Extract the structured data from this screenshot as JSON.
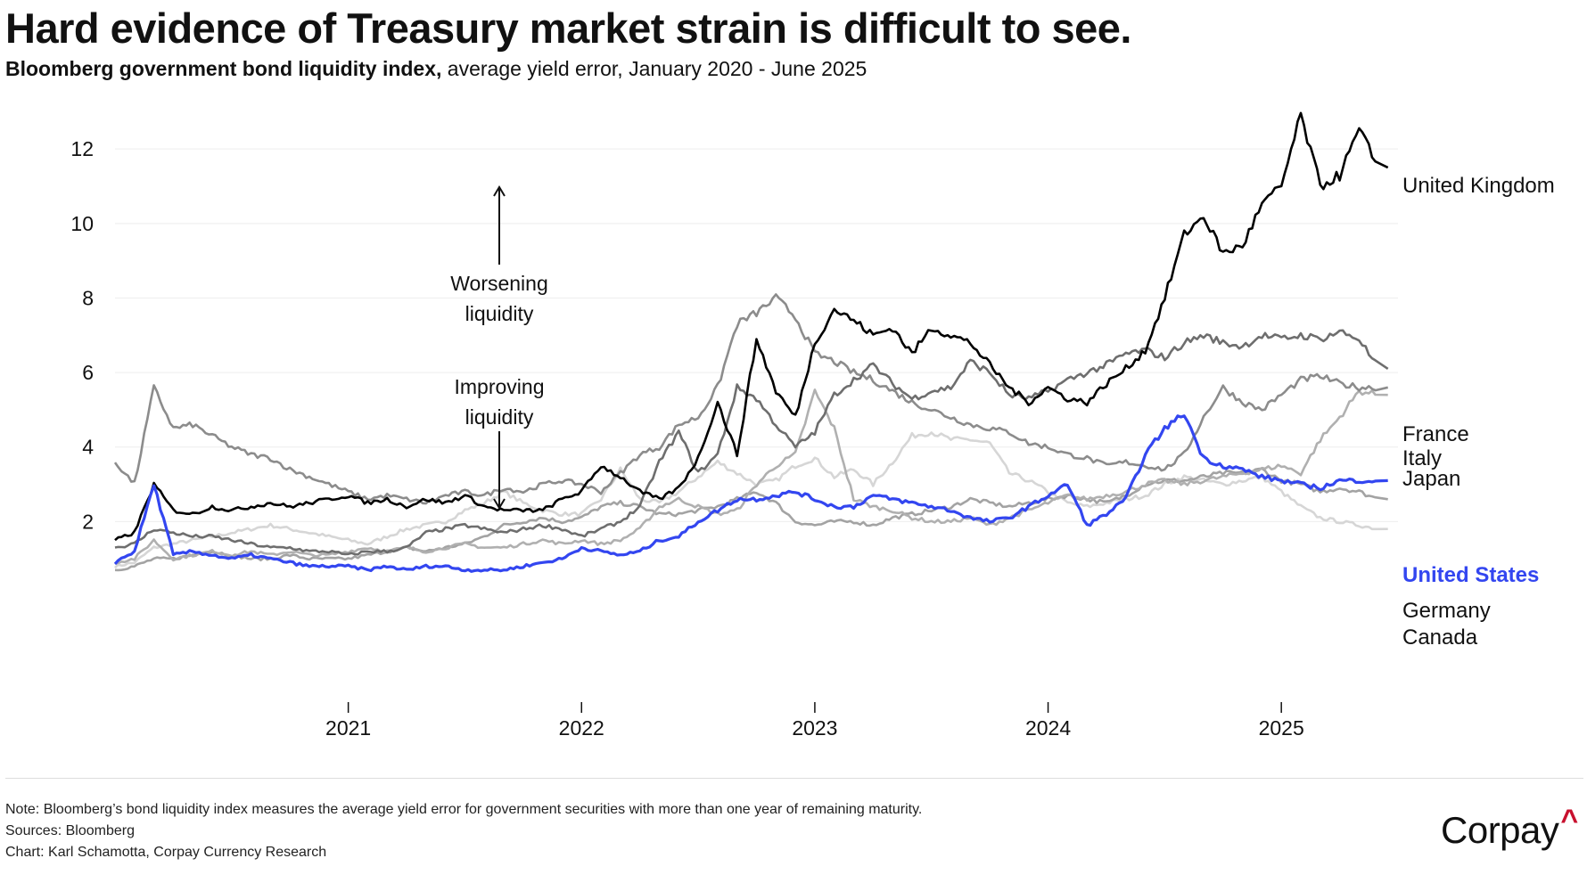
{
  "header": {
    "title": "Hard evidence of Treasury market strain is difficult to see.",
    "subtitle_bold": "Bloomberg government bond liquidity index,",
    "subtitle_rest": " average yield error, January 2020 - June 2025"
  },
  "annotations": {
    "up_line1": "Worsening",
    "up_line2": "liquidity",
    "down_line1": "Improving",
    "down_line2": "liquidity"
  },
  "footer": {
    "note": "Note: Bloomberg’s bond liquidity index measures the average yield error for government securities with more than one year of remaining maturity.",
    "sources": "Sources: Bloomberg",
    "credit": "Chart: Karl Schamotta, Corpay Currency Research"
  },
  "logo": {
    "text": "Corpay",
    "mark": "^",
    "mark_color": "#c8102e"
  },
  "chart_data": {
    "type": "line",
    "title": "Hard evidence of Treasury market strain is difficult to see.",
    "subtitle": "Bloomberg government bond liquidity index, average yield error, January 2020 - June 2025",
    "xlabel": "",
    "ylabel": "",
    "x_start": "2020-01",
    "x_end": "2025-06",
    "frequency": "monthly (approximate)",
    "xlim": [
      2020.0,
      2025.5
    ],
    "ylim": [
      0,
      13.2
    ],
    "yticks": [
      2,
      4,
      6,
      8,
      10,
      12
    ],
    "xticks": [
      {
        "value": 2021,
        "label": "2021"
      },
      {
        "value": 2022,
        "label": "2022"
      },
      {
        "value": 2023,
        "label": "2023"
      },
      {
        "value": 2024,
        "label": "2024"
      },
      {
        "value": 2025,
        "label": "2025"
      }
    ],
    "grid": "horizontal",
    "legend": "direct labels at line ends (right)",
    "series": [
      {
        "name": "Canada",
        "color": "#d6d6d6",
        "label_color": "#111111",
        "bold": false,
        "values": [
          0.8,
          0.9,
          1.3,
          1.4,
          1.5,
          1.6,
          1.7,
          1.8,
          1.9,
          1.8,
          1.7,
          1.6,
          1.5,
          1.4,
          1.6,
          1.8,
          1.9,
          2.0,
          2.3,
          2.5,
          2.8,
          2.5,
          2.3,
          2.2,
          2.2,
          2.6,
          3.4,
          2.6,
          2.5,
          2.8,
          3.2,
          3.6,
          3.3,
          3.0,
          3.1,
          3.5,
          3.7,
          3.2,
          3.4,
          3.0,
          3.6,
          4.3,
          4.4,
          4.2,
          4.2,
          4.1,
          3.3,
          3.1,
          2.8,
          2.5,
          2.4,
          2.5,
          2.6,
          2.7,
          3.0,
          3.2,
          3.1,
          3.0,
          3.1,
          3.2,
          2.8,
          2.4,
          2.1,
          2.0,
          1.9,
          1.8
        ]
      },
      {
        "name": "Germany",
        "color": "#a3a3a3",
        "label_color": "#111111",
        "bold": false,
        "values": [
          0.7,
          0.8,
          1.0,
          1.0,
          1.1,
          1.2,
          1.1,
          1.0,
          1.0,
          1.1,
          1.0,
          1.0,
          1.0,
          1.1,
          1.2,
          1.3,
          1.2,
          1.3,
          1.4,
          1.6,
          1.9,
          2.0,
          2.1,
          2.0,
          2.1,
          2.4,
          2.5,
          2.4,
          2.2,
          2.2,
          2.3,
          2.4,
          2.6,
          2.8,
          2.5,
          2.0,
          1.9,
          2.0,
          2.0,
          1.9,
          2.1,
          2.2,
          2.3,
          2.4,
          2.6,
          2.5,
          2.4,
          2.5,
          2.6,
          2.7,
          2.6,
          2.5,
          2.7,
          3.0,
          3.1,
          3.1,
          3.2,
          3.3,
          3.3,
          3.4,
          3.1,
          3.0,
          2.8,
          2.9,
          2.8,
          2.6
        ]
      },
      {
        "name": "Japan",
        "color": "#b0b0b0",
        "label_color": "#111111",
        "bold": false,
        "values": [
          0.9,
          1.0,
          1.5,
          1.0,
          1.1,
          1.2,
          1.1,
          1.2,
          1.1,
          1.2,
          1.1,
          1.1,
          1.2,
          1.3,
          1.2,
          1.3,
          1.2,
          1.3,
          1.4,
          1.3,
          1.3,
          1.4,
          1.5,
          1.4,
          1.5,
          1.4,
          1.5,
          1.8,
          2.4,
          2.6,
          2.4,
          2.2,
          2.3,
          3.0,
          3.5,
          3.8,
          5.5,
          4.5,
          2.6,
          2.4,
          2.3,
          2.1,
          2.0,
          2.0,
          2.1,
          1.9,
          2.1,
          2.3,
          2.5,
          2.7,
          2.6,
          2.7,
          2.8,
          3.0,
          3.1,
          3.0,
          3.1,
          3.2,
          3.3,
          3.4,
          3.5,
          3.3,
          4.2,
          4.8,
          5.5,
          5.4
        ]
      },
      {
        "name": "Italy",
        "color": "#8c8c8c",
        "label_color": "#111111",
        "bold": false,
        "values": [
          3.6,
          3.0,
          5.6,
          4.5,
          4.6,
          4.3,
          4.0,
          3.8,
          3.7,
          3.4,
          3.2,
          3.0,
          2.8,
          2.6,
          2.7,
          2.6,
          2.5,
          2.7,
          2.8,
          2.7,
          2.9,
          2.8,
          3.0,
          3.1,
          3.0,
          2.8,
          3.3,
          3.8,
          4.0,
          4.6,
          4.8,
          5.6,
          7.3,
          7.6,
          8.0,
          7.5,
          6.5,
          6.3,
          6.0,
          5.8,
          5.5,
          5.2,
          5.0,
          4.8,
          4.6,
          4.5,
          4.4,
          4.1,
          4.0,
          3.8,
          3.7,
          3.5,
          3.6,
          3.5,
          3.4,
          3.8,
          4.8,
          5.6,
          5.2,
          5.0,
          5.4,
          5.8,
          5.9,
          5.7,
          5.6,
          5.6
        ]
      },
      {
        "name": "France",
        "color": "#6e6e6e",
        "label_color": "#111111",
        "bold": false,
        "values": [
          1.3,
          1.4,
          1.8,
          1.7,
          1.6,
          1.6,
          1.5,
          1.4,
          1.3,
          1.3,
          1.2,
          1.2,
          1.1,
          1.2,
          1.2,
          1.3,
          1.7,
          1.8,
          1.9,
          1.8,
          1.7,
          1.8,
          1.9,
          1.8,
          1.6,
          1.8,
          2.0,
          2.4,
          3.6,
          4.4,
          3.3,
          3.8,
          5.6,
          5.3,
          4.6,
          4.0,
          4.4,
          5.4,
          5.8,
          6.2,
          5.7,
          5.3,
          5.5,
          5.6,
          6.3,
          6.0,
          5.4,
          5.3,
          5.5,
          5.8,
          6.0,
          6.2,
          6.5,
          6.6,
          6.4,
          6.8,
          7.0,
          6.8,
          6.7,
          7.0,
          6.9,
          7.0,
          6.9,
          7.1,
          6.9,
          6.1
        ]
      },
      {
        "name": "United Kingdom",
        "color": "#000000",
        "label_color": "#111111",
        "bold": false,
        "values": [
          1.5,
          1.7,
          3.0,
          2.3,
          2.2,
          2.4,
          2.3,
          2.4,
          2.5,
          2.4,
          2.5,
          2.6,
          2.7,
          2.5,
          2.6,
          2.4,
          2.6,
          2.5,
          2.7,
          2.4,
          2.3,
          2.3,
          2.3,
          2.6,
          2.8,
          3.5,
          3.2,
          2.8,
          2.6,
          2.9,
          3.7,
          5.2,
          3.8,
          6.9,
          5.5,
          4.8,
          6.8,
          7.7,
          7.4,
          7.0,
          7.2,
          6.5,
          7.2,
          7.0,
          6.8,
          6.2,
          5.6,
          5.2,
          5.6,
          5.3,
          5.2,
          5.7,
          6.1,
          6.6,
          8.0,
          9.7,
          10.2,
          9.2,
          9.4,
          10.5,
          11.0,
          12.9,
          11.0,
          11.3,
          12.5,
          11.5
        ]
      },
      {
        "name": "United States",
        "color": "#3346f0",
        "label_color": "#3346f0",
        "bold": true,
        "values": [
          0.9,
          1.2,
          3.0,
          1.1,
          1.2,
          1.1,
          1.0,
          1.1,
          1.0,
          0.9,
          0.8,
          0.8,
          0.8,
          0.7,
          0.8,
          0.7,
          0.8,
          0.8,
          0.7,
          0.7,
          0.7,
          0.8,
          0.9,
          1.0,
          1.3,
          1.2,
          1.1,
          1.2,
          1.5,
          1.6,
          2.0,
          2.3,
          2.6,
          2.6,
          2.7,
          2.8,
          2.6,
          2.4,
          2.4,
          2.7,
          2.6,
          2.5,
          2.4,
          2.3,
          2.1,
          2.0,
          2.1,
          2.4,
          2.7,
          3.0,
          1.9,
          2.2,
          2.6,
          3.8,
          4.5,
          4.9,
          3.7,
          3.5,
          3.4,
          3.2,
          3.1,
          3.0,
          2.9,
          3.1,
          3.1,
          3.1
        ]
      }
    ],
    "end_labels": [
      {
        "name": "United Kingdom",
        "text": "United Kingdom"
      },
      {
        "name": "France",
        "text": "France"
      },
      {
        "name": "Italy",
        "text": "Italy"
      },
      {
        "name": "Japan",
        "text": "Japan"
      },
      {
        "name": "United States",
        "text": "United States"
      },
      {
        "name": "Germany",
        "text": "Germany"
      },
      {
        "name": "Canada",
        "text": "Canada"
      }
    ]
  }
}
